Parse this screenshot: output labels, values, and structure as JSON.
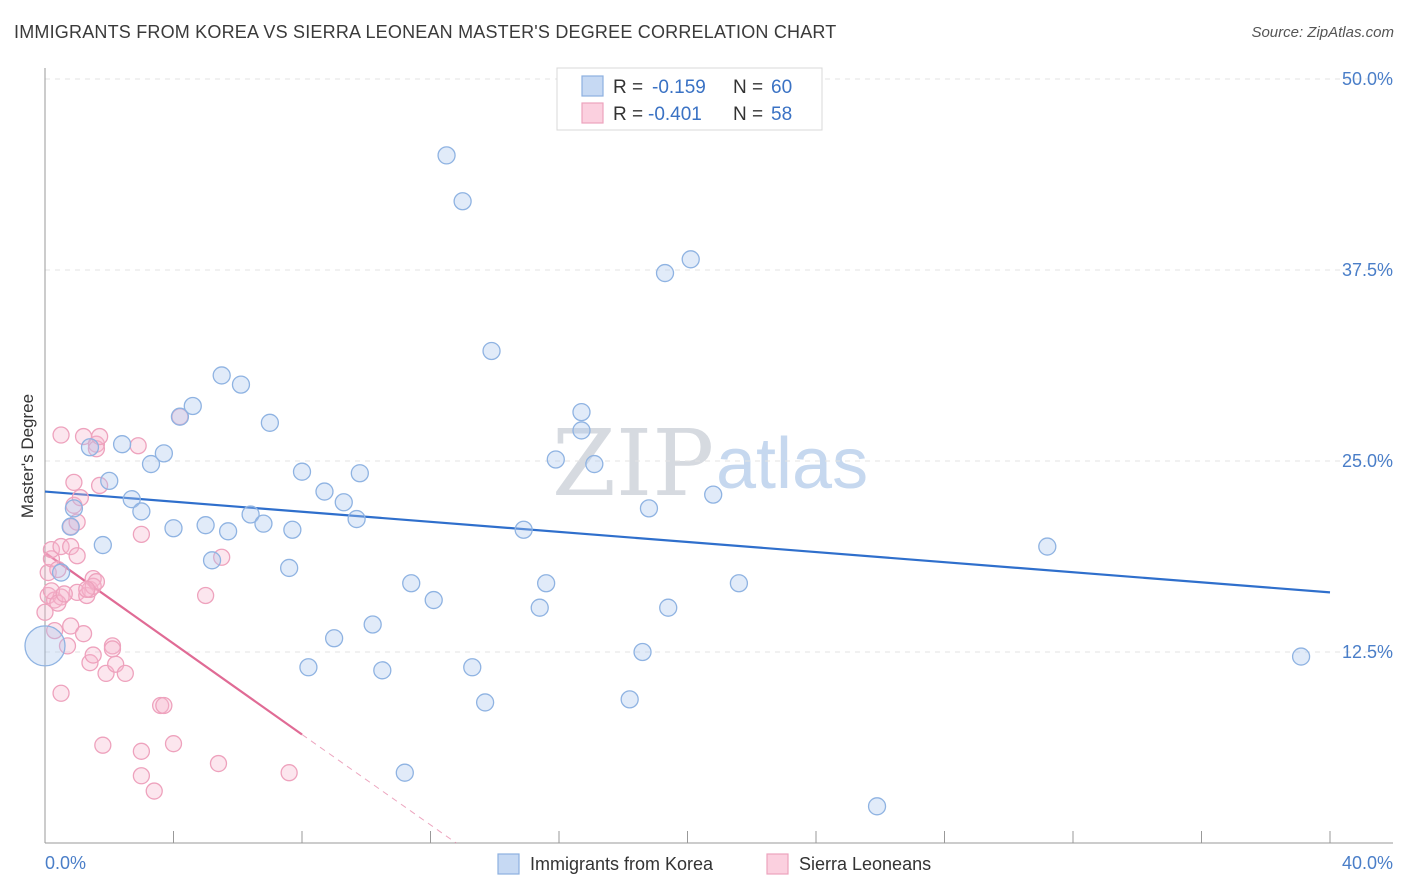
{
  "title": "IMMIGRANTS FROM KOREA VS SIERRA LEONEAN MASTER'S DEGREE CORRELATION CHART",
  "source": "Source: ZipAtlas.com",
  "watermark": {
    "zip": "ZIP",
    "atlas": "atlas"
  },
  "legend": {
    "series": [
      {
        "r_label": "R =",
        "r_value": "-0.159",
        "n_label": "N =",
        "n_value": "60"
      },
      {
        "r_label": "R =",
        "r_value": "-0.401",
        "n_label": "N =",
        "n_value": "58"
      }
    ]
  },
  "bottom_legend": [
    "Immigrants from Korea",
    "Sierra Leoneans"
  ],
  "chart_data": {
    "type": "scatter",
    "title": "IMMIGRANTS FROM KOREA VS SIERRA LEONEAN MASTER'S DEGREE CORRELATION CHART",
    "xlabel": "",
    "ylabel": "Master's Degree",
    "xlim": [
      0,
      40
    ],
    "ylim": [
      0,
      50
    ],
    "x_tick_labels": [
      "0.0%",
      "40.0%"
    ],
    "y_ticks": [
      12.5,
      25.0,
      37.5,
      50.0
    ],
    "y_tick_labels": [
      "12.5%",
      "25.0%",
      "37.5%",
      "50.0%"
    ],
    "grid": "horizontal dashed",
    "legend_position": "top-center",
    "colors": {
      "korea": "#9dbde9",
      "korea_line": "#2f6fcc",
      "sierra": "#f2a9c2",
      "sierra_line": "#e06b95"
    },
    "series": [
      {
        "name": "Immigrants from Korea",
        "r": -0.159,
        "n": 60,
        "trend": {
          "x": [
            0,
            40
          ],
          "y": [
            23.0,
            16.4
          ]
        },
        "points": [
          [
            0.0,
            12.9
          ],
          [
            0.5,
            17.7
          ],
          [
            0.8,
            20.7
          ],
          [
            0.9,
            21.9
          ],
          [
            1.4,
            25.9
          ],
          [
            1.8,
            19.5
          ],
          [
            2.0,
            23.7
          ],
          [
            2.4,
            26.1
          ],
          [
            2.7,
            22.5
          ],
          [
            3.0,
            21.7
          ],
          [
            3.3,
            24.8
          ],
          [
            3.7,
            25.5
          ],
          [
            4.0,
            20.6
          ],
          [
            4.2,
            27.9
          ],
          [
            4.6,
            28.6
          ],
          [
            5.0,
            20.8
          ],
          [
            5.2,
            18.5
          ],
          [
            5.5,
            30.6
          ],
          [
            5.7,
            20.4
          ],
          [
            6.1,
            30.0
          ],
          [
            6.4,
            21.5
          ],
          [
            6.8,
            20.9
          ],
          [
            7.0,
            27.5
          ],
          [
            7.6,
            18.0
          ],
          [
            7.7,
            20.5
          ],
          [
            8.0,
            24.3
          ],
          [
            8.2,
            11.5
          ],
          [
            8.7,
            23.0
          ],
          [
            9.0,
            13.4
          ],
          [
            9.3,
            22.3
          ],
          [
            9.7,
            21.2
          ],
          [
            9.8,
            24.2
          ],
          [
            10.2,
            14.3
          ],
          [
            10.5,
            11.3
          ],
          [
            11.2,
            4.6
          ],
          [
            11.4,
            17.0
          ],
          [
            12.1,
            15.9
          ],
          [
            12.5,
            45.0
          ],
          [
            13.0,
            42.0
          ],
          [
            13.3,
            11.5
          ],
          [
            13.7,
            9.2
          ],
          [
            13.9,
            32.2
          ],
          [
            14.9,
            20.5
          ],
          [
            15.4,
            15.4
          ],
          [
            15.6,
            17.0
          ],
          [
            15.9,
            25.1
          ],
          [
            16.7,
            28.2
          ],
          [
            16.7,
            27.0
          ],
          [
            17.1,
            24.8
          ],
          [
            18.2,
            9.4
          ],
          [
            18.6,
            12.5
          ],
          [
            18.8,
            21.9
          ],
          [
            19.3,
            37.3
          ],
          [
            19.4,
            15.4
          ],
          [
            20.1,
            38.2
          ],
          [
            20.8,
            22.8
          ],
          [
            21.6,
            17.0
          ],
          [
            25.9,
            2.4
          ],
          [
            31.2,
            19.4
          ],
          [
            39.1,
            12.2
          ]
        ]
      },
      {
        "name": "Sierra Leoneans",
        "r": -0.401,
        "n": 58,
        "trend": {
          "x": [
            0,
            8.0
          ],
          "y": [
            19.0,
            7.1
          ]
        },
        "trend_dashed": {
          "x": [
            8.0,
            12.8
          ],
          "y": [
            7.1,
            0.0
          ]
        },
        "points": [
          [
            0.0,
            15.1
          ],
          [
            0.1,
            16.2
          ],
          [
            0.1,
            17.7
          ],
          [
            0.2,
            18.6
          ],
          [
            0.2,
            19.2
          ],
          [
            0.3,
            15.9
          ],
          [
            0.3,
            13.9
          ],
          [
            0.4,
            17.9
          ],
          [
            0.5,
            19.4
          ],
          [
            0.5,
            16.1
          ],
          [
            0.5,
            9.8
          ],
          [
            0.5,
            26.7
          ],
          [
            0.7,
            12.9
          ],
          [
            0.8,
            20.7
          ],
          [
            0.8,
            19.4
          ],
          [
            0.8,
            14.2
          ],
          [
            0.9,
            22.1
          ],
          [
            0.9,
            23.6
          ],
          [
            1.0,
            21.0
          ],
          [
            1.0,
            16.4
          ],
          [
            1.0,
            18.8
          ],
          [
            1.1,
            22.6
          ],
          [
            1.2,
            13.7
          ],
          [
            1.2,
            26.6
          ],
          [
            1.3,
            16.2
          ],
          [
            1.4,
            16.6
          ],
          [
            1.4,
            11.8
          ],
          [
            1.5,
            17.3
          ],
          [
            1.5,
            16.8
          ],
          [
            1.5,
            12.3
          ],
          [
            1.6,
            26.1
          ],
          [
            1.6,
            17.1
          ],
          [
            1.6,
            25.8
          ],
          [
            1.7,
            23.4
          ],
          [
            1.7,
            26.6
          ],
          [
            1.8,
            6.4
          ],
          [
            1.9,
            11.1
          ],
          [
            2.1,
            12.9
          ],
          [
            2.1,
            12.7
          ],
          [
            2.2,
            11.7
          ],
          [
            2.5,
            11.1
          ],
          [
            2.9,
            26.0
          ],
          [
            3.0,
            20.2
          ],
          [
            3.0,
            4.4
          ],
          [
            3.0,
            6.0
          ],
          [
            3.4,
            3.4
          ],
          [
            3.6,
            9.0
          ],
          [
            3.7,
            9.0
          ],
          [
            4.0,
            6.5
          ],
          [
            4.2,
            27.9
          ],
          [
            5.0,
            16.2
          ],
          [
            5.4,
            5.2
          ],
          [
            5.5,
            18.7
          ],
          [
            7.6,
            4.6
          ],
          [
            0.2,
            16.5
          ],
          [
            0.4,
            15.7
          ],
          [
            1.3,
            16.6
          ],
          [
            0.6,
            16.3
          ]
        ]
      }
    ]
  }
}
